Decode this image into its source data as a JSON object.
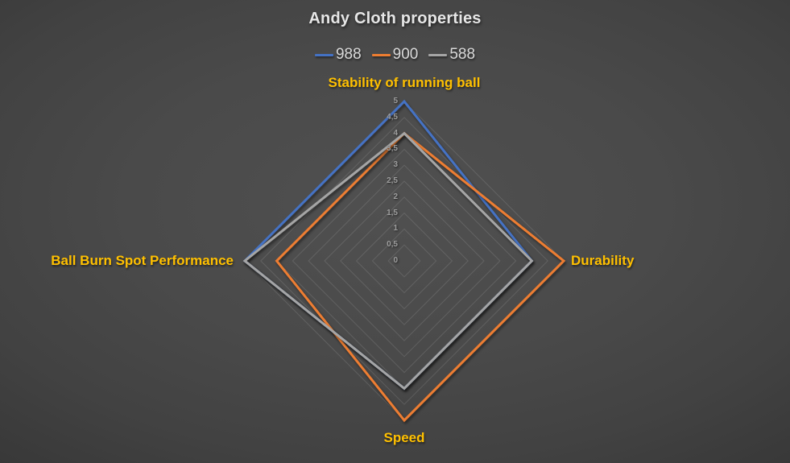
{
  "title": "Andy Cloth properties",
  "legend": {
    "items": [
      {
        "label": "988",
        "color": "#4472C4"
      },
      {
        "label": "900",
        "color": "#ED7D31"
      },
      {
        "label": "588",
        "color": "#A5A5A5"
      }
    ]
  },
  "chart_data": {
    "type": "radar",
    "title": "Andy Cloth properties",
    "categories": [
      "Stability of running ball",
      "Durability",
      "Speed",
      "Ball Burn Spot Performance"
    ],
    "series": [
      {
        "name": "988",
        "color": "#4472C4",
        "values": [
          5,
          4,
          4,
          5
        ]
      },
      {
        "name": "900",
        "color": "#ED7D31",
        "values": [
          4,
          5,
          5,
          4
        ]
      },
      {
        "name": "588",
        "color": "#A5A5A5",
        "values": [
          4,
          4,
          4,
          5
        ]
      }
    ],
    "rlim": [
      0,
      5
    ],
    "tick_step": 0.5,
    "tick_labels": [
      "0",
      "0,5",
      "1",
      "1,5",
      "2",
      "2,5",
      "3",
      "3,5",
      "4",
      "4,5",
      "5"
    ],
    "grid": true,
    "legend_position": "top"
  },
  "styles": {
    "title_color": "#E6E6E6",
    "legend_text_color": "#D9D9D9",
    "category_label_color": "#FFC000",
    "tick_label_color": "#9E9E9E",
    "gridline_color": "#5C5C5C"
  }
}
